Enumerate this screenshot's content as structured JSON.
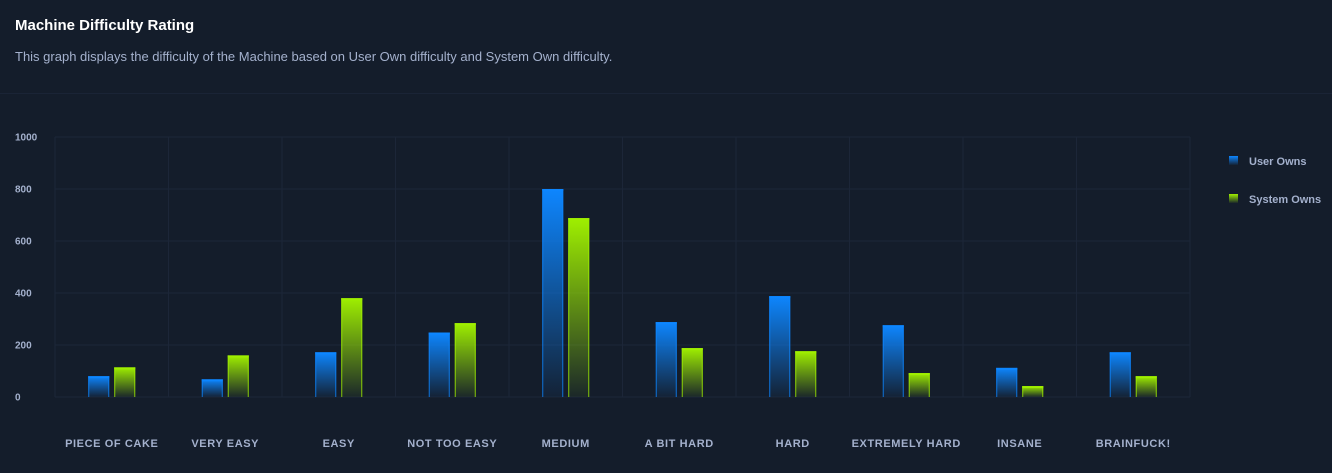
{
  "card": {
    "title": "Machine Difficulty Rating",
    "subtitle": "This graph displays the difficulty of the Machine based on User Own difficulty and System Own difficulty."
  },
  "chart_data": {
    "type": "bar",
    "categories": [
      "PIECE OF CAKE",
      "VERY EASY",
      "EASY",
      "NOT TOO EASY",
      "MEDIUM",
      "A BIT HARD",
      "HARD",
      "EXTREMELY HARD",
      "INSANE",
      "BRAINFUCK!"
    ],
    "series": [
      {
        "name": "User Owns",
        "values": [
          80,
          68,
          172,
          248,
          800,
          288,
          388,
          276,
          112,
          172
        ],
        "color": "#0d86ff"
      },
      {
        "name": "System Owns",
        "values": [
          114,
          160,
          380,
          284,
          688,
          188,
          176,
          92,
          42,
          80
        ],
        "color": "#9fef00"
      }
    ],
    "yticks": [
      0,
      200,
      400,
      600,
      800,
      1000
    ],
    "ylim": [
      0,
      1000
    ],
    "grid": true,
    "legend_position": "right"
  }
}
